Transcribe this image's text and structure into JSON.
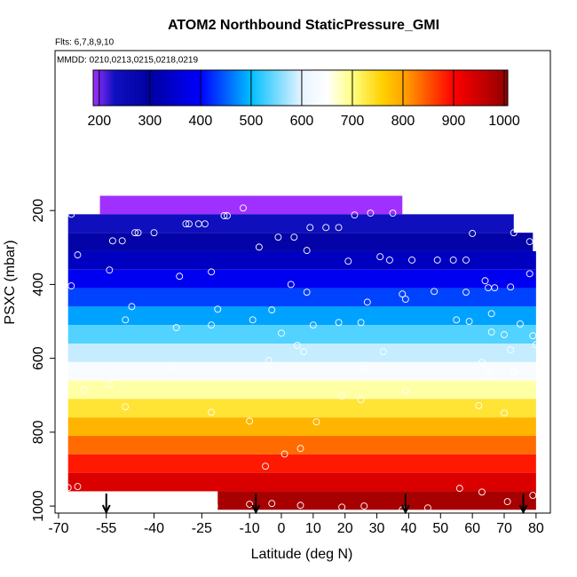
{
  "chart_data": {
    "type": "heatmap",
    "title": "ATOM2 Northbound StaticPressure_GMI",
    "subtitle": "Flts: 6,7,8,9,10",
    "annotation": "MMDD: 0210,0213,0215,0218,0219",
    "xlabel": "Latitude (deg N)",
    "ylabel": "PSXC (mbar)",
    "xlim": [
      -71.1,
      84.5
    ],
    "ylim": [
      -233,
      1019
    ],
    "y_reversed": true,
    "xticks": [
      -70,
      -55,
      -40,
      -25,
      -10,
      0,
      10,
      20,
      30,
      40,
      50,
      60,
      70,
      80
    ],
    "yticks": [
      200,
      400,
      600,
      800,
      1000
    ],
    "y_edges": [
      160,
      210,
      260,
      310,
      360,
      410,
      460,
      510,
      560,
      610,
      660,
      710,
      760,
      810,
      860,
      910,
      960,
      1010
    ],
    "x_start": [
      -57,
      -67,
      -67,
      -67,
      -67,
      -67,
      -67,
      -67,
      -67,
      -67,
      -67,
      -67,
      -67,
      -67,
      -67,
      -67,
      -20
    ],
    "x_end": [
      38,
      73,
      79,
      80,
      80,
      80,
      80,
      80,
      80,
      80,
      80,
      80,
      80,
      80,
      80,
      80,
      80
    ],
    "values": [
      185,
      235,
      285,
      335,
      385,
      435,
      485,
      535,
      585,
      635,
      685,
      735,
      785,
      835,
      885,
      935,
      985
    ],
    "colorbar": {
      "clim": [
        188,
        1007
      ],
      "ticks": [
        200,
        300,
        400,
        500,
        600,
        700,
        800,
        900,
        1000
      ],
      "stops": [
        188,
        230,
        300,
        400,
        500,
        600,
        650,
        700,
        760,
        800,
        900,
        1007
      ],
      "colors": [
        "#a030ff",
        "#1010c0",
        "#0000a0",
        "#0000ff",
        "#00bfff",
        "#e8f4ff",
        "#ffffff",
        "#ffff80",
        "#ffd000",
        "#ffa500",
        "#ff0000",
        "#900000"
      ]
    },
    "points": {
      "color": "#ffffff",
      "x": [
        -63,
        -59,
        -66,
        -53,
        -50,
        -46,
        -45,
        -40,
        -64,
        -54,
        -30,
        -29,
        -26,
        -24,
        -18,
        -17,
        -12,
        -7,
        -1,
        4,
        9,
        8,
        14,
        18,
        23,
        28,
        35,
        21,
        31,
        34,
        41,
        49,
        54,
        58,
        60,
        73,
        78,
        -66,
        -32,
        -22,
        3,
        8,
        27,
        38,
        39,
        48,
        58,
        64,
        65,
        67,
        72,
        78,
        -47,
        -49,
        -33,
        -20,
        -22,
        -9,
        -3,
        10,
        18,
        25,
        55,
        59,
        66,
        66,
        70,
        75,
        79,
        80,
        0,
        5,
        7,
        -4,
        -35,
        26,
        32,
        63,
        65,
        73,
        72,
        -62,
        -54,
        -49,
        -22,
        -10,
        11,
        19,
        25,
        39,
        62,
        70,
        -5,
        1,
        6,
        -67,
        -64,
        56,
        63,
        71,
        79,
        -21,
        -10,
        -3,
        6,
        19,
        26,
        38,
        46
      ],
      "y": [
        188,
        186,
        210,
        282,
        282,
        260,
        260,
        260,
        320,
        361,
        236,
        236,
        236,
        236,
        214,
        214,
        193,
        299,
        272,
        272,
        246,
        308,
        246,
        246,
        212,
        207,
        207,
        337,
        325,
        334,
        334,
        334,
        334,
        334,
        262,
        260,
        284,
        404,
        378,
        366,
        400,
        421,
        448,
        426,
        440,
        419,
        421,
        390,
        409,
        409,
        407,
        371,
        460,
        496,
        517,
        467,
        510,
        496,
        469,
        510,
        503,
        503,
        496,
        500,
        479,
        529,
        536,
        507,
        539,
        563,
        532,
        565,
        582,
        606,
        623,
        627,
        582,
        611,
        640,
        637,
        577,
        685,
        671,
        731,
        746,
        770,
        772,
        702,
        712,
        688,
        728,
        748,
        892,
        859,
        844,
        950,
        947,
        952,
        962,
        988,
        971,
        1000,
        995,
        993,
        998,
        1003,
        1000,
        1010,
        1005
      ]
    },
    "arrows_x": [
      -55,
      -8,
      39,
      76
    ]
  }
}
